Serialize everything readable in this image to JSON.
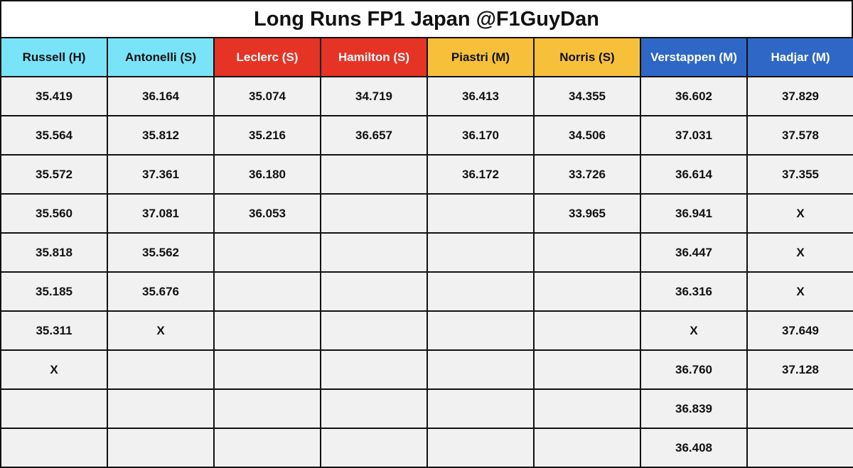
{
  "title": "Long Runs FP1 Japan @F1GuyDan",
  "colors": {
    "mercedes": "#79e4f7",
    "ferrari": "#e53326",
    "mclaren": "#f6c03a",
    "redbull": "#2f67c6",
    "cell_bg": "#f1f1f1"
  },
  "headers": [
    {
      "label": "Russell (H)",
      "team": "mercedes"
    },
    {
      "label": "Antonelli (S)",
      "team": "mercedes"
    },
    {
      "label": "Leclerc (S)",
      "team": "ferrari"
    },
    {
      "label": "Hamilton (S)",
      "team": "ferrari"
    },
    {
      "label": "Piastri (M)",
      "team": "mclaren"
    },
    {
      "label": "Norris (S)",
      "team": "mclaren"
    },
    {
      "label": "Verstappen (M)",
      "team": "redbull"
    },
    {
      "label": "Hadjar (M)",
      "team": "redbull"
    }
  ],
  "rows": [
    [
      "35.419",
      "36.164",
      "35.074",
      "34.719",
      "36.413",
      "34.355",
      "36.602",
      "37.829"
    ],
    [
      "35.564",
      "35.812",
      "35.216",
      "36.657",
      "36.170",
      "34.506",
      "37.031",
      "37.578"
    ],
    [
      "35.572",
      "37.361",
      "36.180",
      "",
      "36.172",
      "33.726",
      "36.614",
      "37.355"
    ],
    [
      "35.560",
      "37.081",
      "36.053",
      "",
      "",
      "33.965",
      "36.941",
      "X"
    ],
    [
      "35.818",
      "35.562",
      "",
      "",
      "",
      "",
      "36.447",
      "X"
    ],
    [
      "35.185",
      "35.676",
      "",
      "",
      "",
      "",
      "36.316",
      "X"
    ],
    [
      "35.311",
      "X",
      "",
      "",
      "",
      "",
      "X",
      "37.649"
    ],
    [
      "X",
      "",
      "",
      "",
      "",
      "",
      "36.760",
      "37.128"
    ],
    [
      "",
      "",
      "",
      "",
      "",
      "",
      "36.839",
      ""
    ],
    [
      "",
      "",
      "",
      "",
      "",
      "",
      "36.408",
      ""
    ]
  ]
}
